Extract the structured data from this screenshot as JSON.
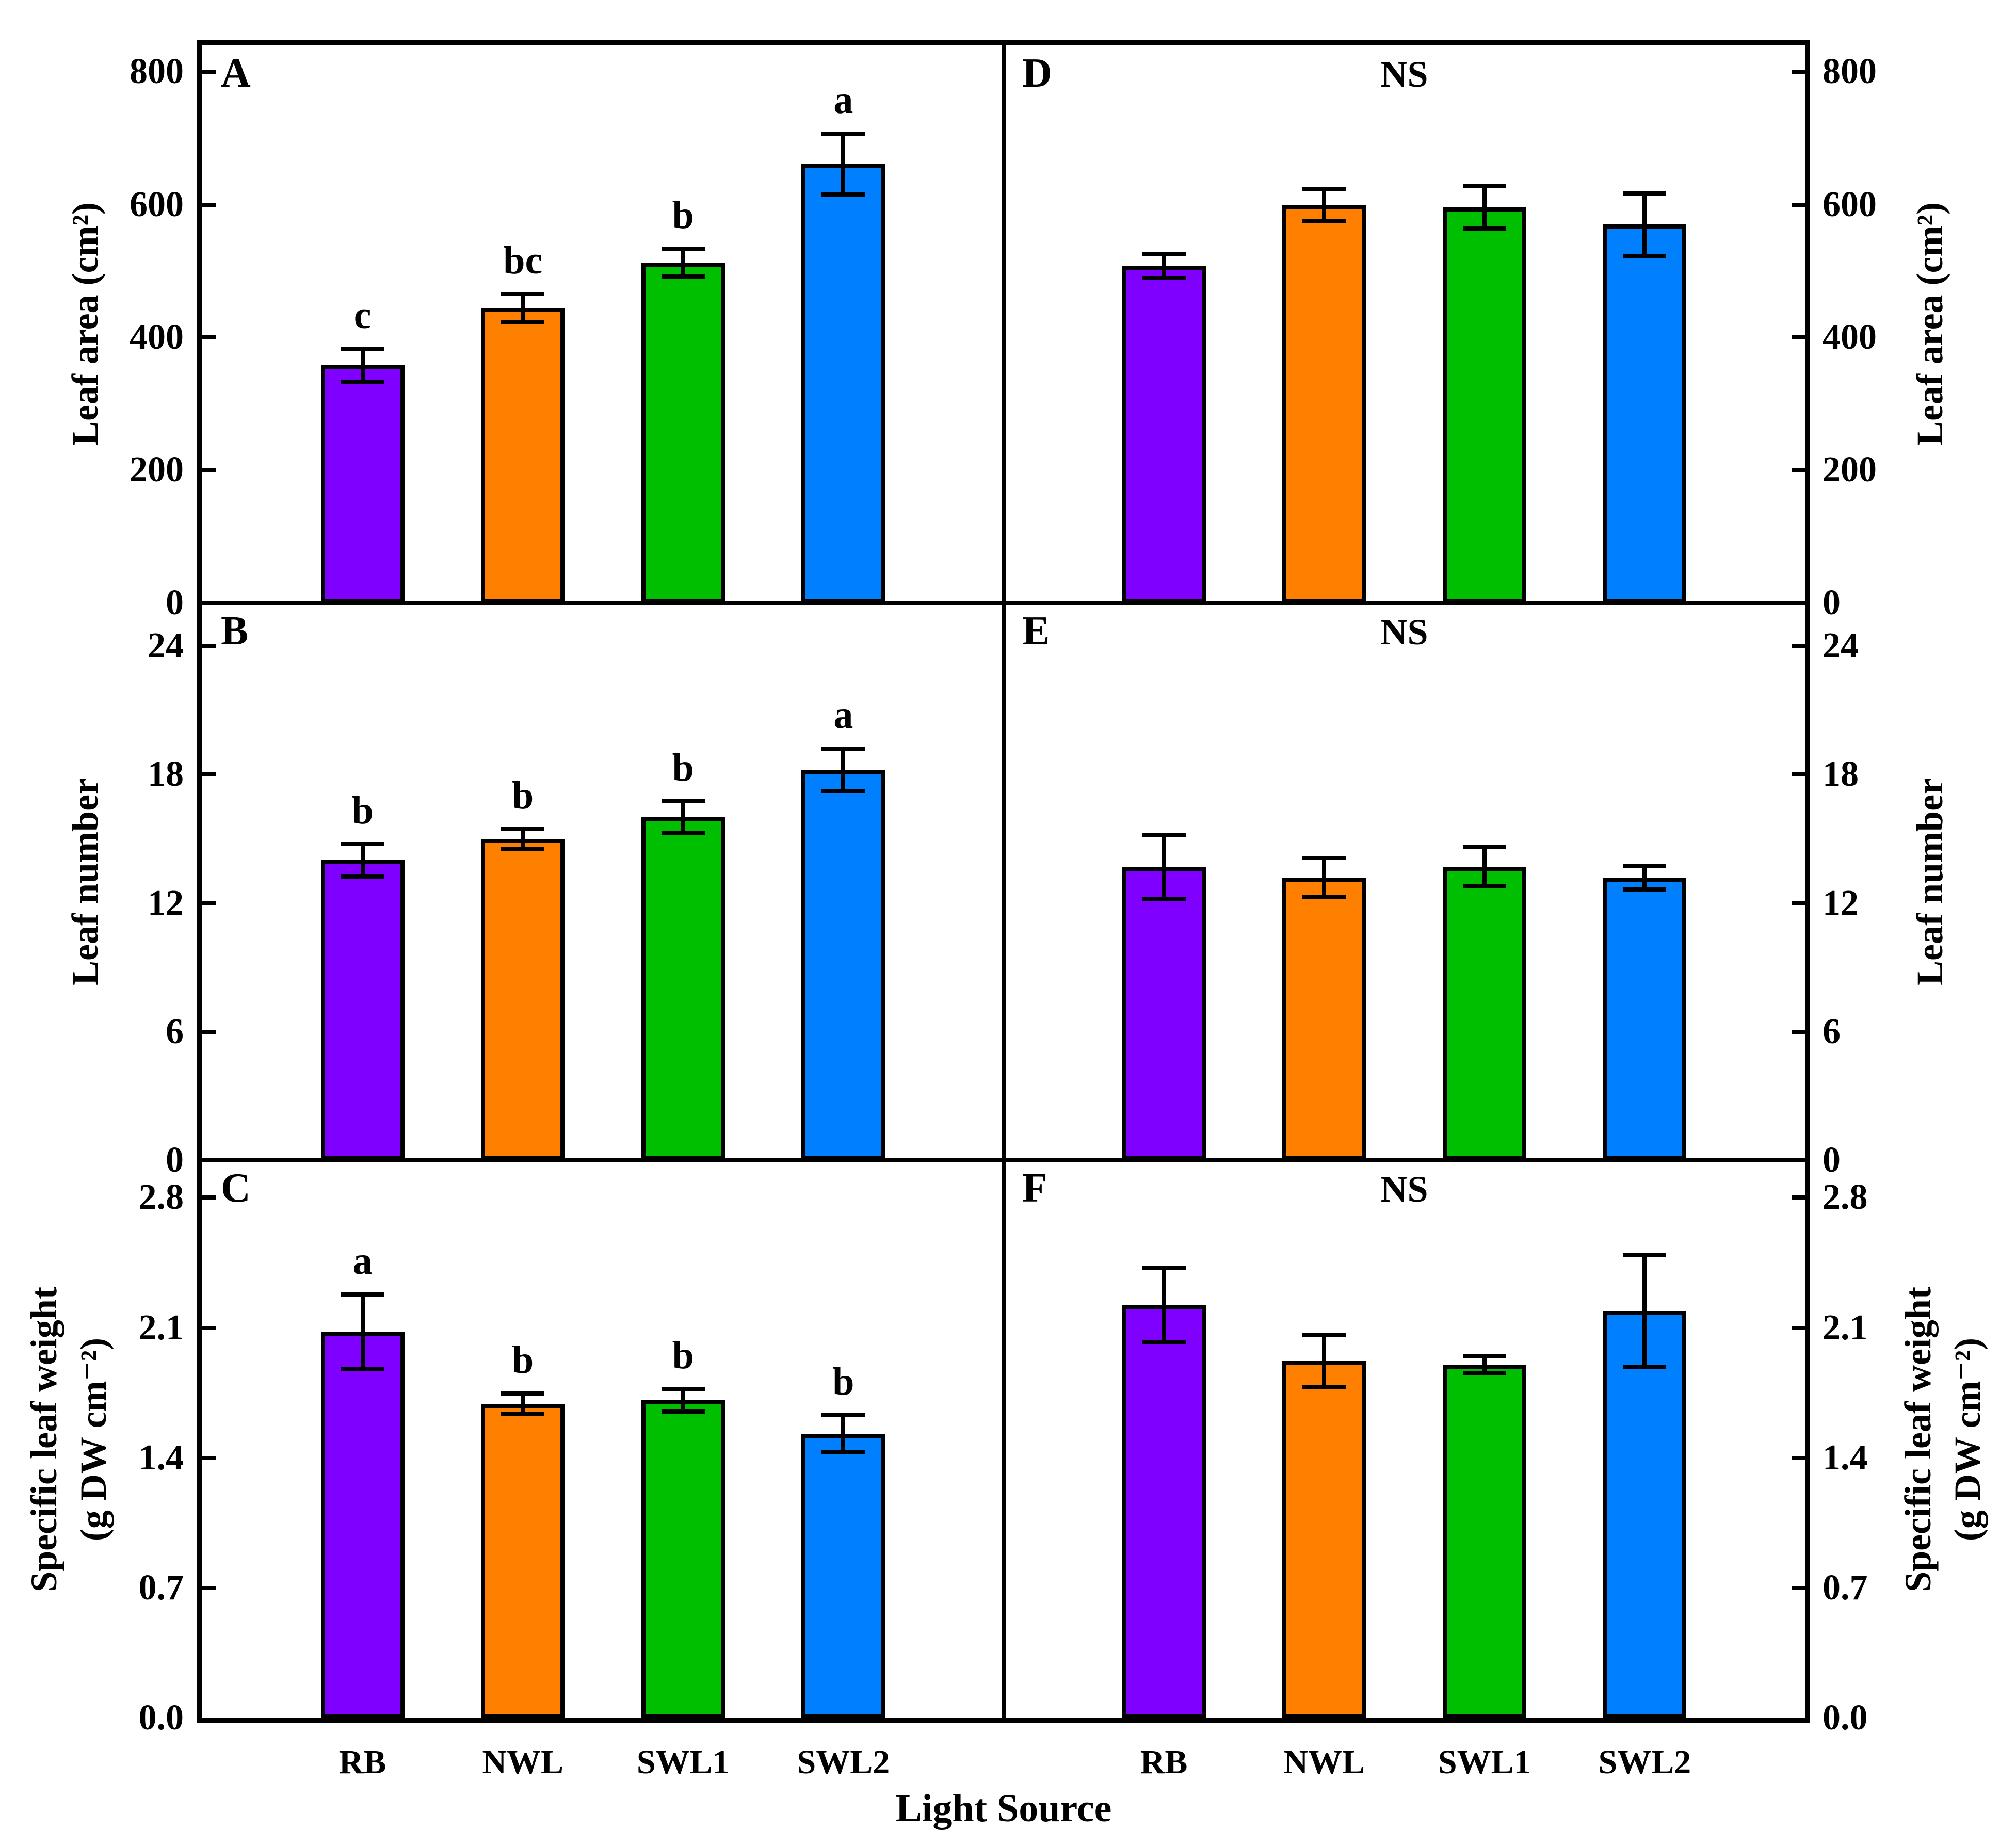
{
  "figure": {
    "xlabel": "Light Source",
    "categories": [
      "RB",
      "NWL",
      "SWL1",
      "SWL2"
    ],
    "bar_colors": [
      "#7F00FF",
      "#FF8000",
      "#00BF00",
      "#007FFF"
    ],
    "bar_outline_color": "#000000",
    "background_color": "#FFFFFF",
    "legend": "none",
    "grid": "off"
  },
  "chart_data": [
    {
      "type": "bar",
      "panel": "A",
      "position": "top-left",
      "axis_side": "left",
      "ylabel": "Leaf area (cm²)",
      "ylim": [
        0,
        840
      ],
      "yticks": [
        0,
        200,
        400,
        600,
        800
      ],
      "ytick_labels": [
        "0",
        "200",
        "400",
        "600",
        "800"
      ],
      "categories": [
        "RB",
        "NWL",
        "SWL1",
        "SWL2"
      ],
      "values": [
        358,
        444,
        513,
        661
      ],
      "errors": [
        25,
        21,
        21,
        46
      ],
      "sig_letters": [
        "c",
        "bc",
        "b",
        "a"
      ],
      "annotation": ""
    },
    {
      "type": "bar",
      "panel": "B",
      "position": "middle-left",
      "axis_side": "left",
      "ylabel": "Leaf number",
      "ylim": [
        0,
        26
      ],
      "yticks": [
        0,
        6,
        12,
        18,
        24
      ],
      "ytick_labels": [
        "0",
        "6",
        "12",
        "18",
        "24"
      ],
      "categories": [
        "RB",
        "NWL",
        "SWL1",
        "SWL2"
      ],
      "values": [
        14.0,
        15.0,
        16.0,
        18.2
      ],
      "errors": [
        0.75,
        0.45,
        0.75,
        1.0
      ],
      "sig_letters": [
        "b",
        "b",
        "b",
        "a"
      ],
      "annotation": ""
    },
    {
      "type": "bar",
      "panel": "C",
      "position": "bottom-left",
      "axis_side": "left",
      "ylabel": "Specific leaf weight (g DW cm⁻²)",
      "ylabel_lines": [
        "Specific leaf weight",
        "(g DW cm⁻²)"
      ],
      "ylim": [
        0,
        3.0
      ],
      "yticks": [
        0,
        0.7,
        1.4,
        2.1,
        2.8
      ],
      "ytick_labels": [
        "0.0",
        "0.7",
        "1.4",
        "2.1",
        "2.8"
      ],
      "categories": [
        "RB",
        "NWL",
        "SWL1",
        "SWL2"
      ],
      "values": [
        2.08,
        1.69,
        1.71,
        1.53
      ],
      "errors": [
        0.2,
        0.055,
        0.06,
        0.1
      ],
      "sig_letters": [
        "a",
        "b",
        "b",
        "b"
      ],
      "annotation": ""
    },
    {
      "type": "bar",
      "panel": "D",
      "position": "top-right",
      "axis_side": "right",
      "ylabel": "Leaf area (cm²)",
      "ylim": [
        0,
        840
      ],
      "yticks": [
        0,
        200,
        400,
        600,
        800
      ],
      "ytick_labels": [
        "0",
        "200",
        "400",
        "600",
        "800"
      ],
      "categories": [
        "RB",
        "NWL",
        "SWL1",
        "SWL2"
      ],
      "values": [
        508,
        600,
        596,
        570
      ],
      "errors": [
        18,
        24,
        32,
        47
      ],
      "sig_letters": [],
      "annotation": "NS"
    },
    {
      "type": "bar",
      "panel": "E",
      "position": "middle-right",
      "axis_side": "right",
      "ylabel": "Leaf number",
      "ylim": [
        0,
        26
      ],
      "yticks": [
        0,
        6,
        12,
        18,
        24
      ],
      "ytick_labels": [
        "0",
        "6",
        "12",
        "18",
        "24"
      ],
      "categories": [
        "RB",
        "NWL",
        "SWL1",
        "SWL2"
      ],
      "values": [
        13.7,
        13.2,
        13.7,
        13.2
      ],
      "errors": [
        1.5,
        0.9,
        0.9,
        0.55
      ],
      "sig_letters": [],
      "annotation": "NS"
    },
    {
      "type": "bar",
      "panel": "F",
      "position": "bottom-right",
      "axis_side": "right",
      "ylabel": "Specific leaf weight (g DW cm⁻²)",
      "ylabel_lines": [
        "Specific leaf weight",
        "(g DW cm⁻²)"
      ],
      "ylim": [
        0,
        3.0
      ],
      "yticks": [
        0,
        0.7,
        1.4,
        2.1,
        2.8
      ],
      "ytick_labels": [
        "0.0",
        "0.7",
        "1.4",
        "2.1",
        "2.8"
      ],
      "categories": [
        "RB",
        "NWL",
        "SWL1",
        "SWL2"
      ],
      "values": [
        2.22,
        1.92,
        1.9,
        2.19
      ],
      "errors": [
        0.2,
        0.14,
        0.045,
        0.3
      ],
      "sig_letters": [],
      "annotation": "NS"
    }
  ]
}
